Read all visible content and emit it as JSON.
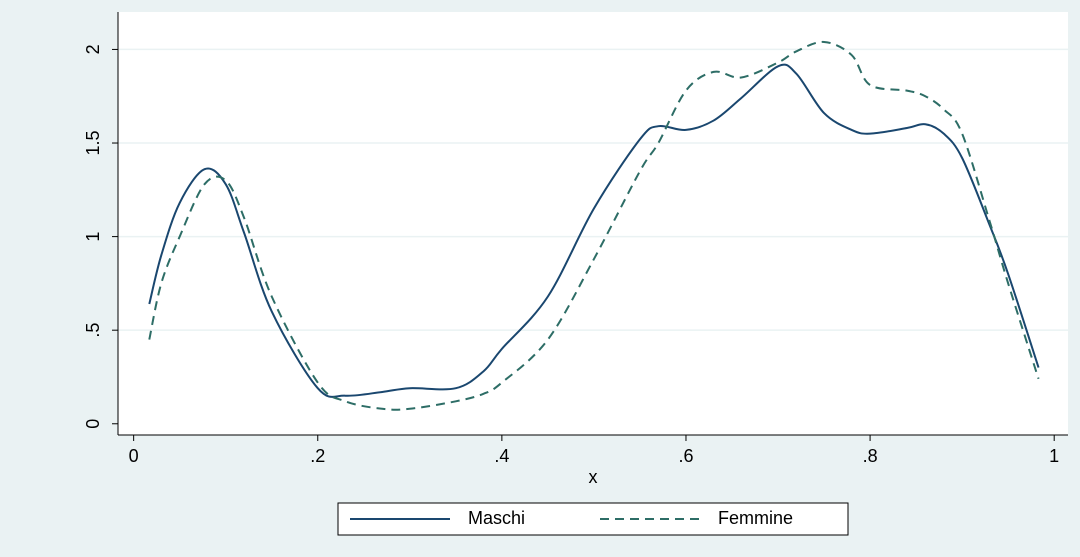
{
  "chart_data": {
    "type": "line",
    "x": [
      0.017,
      0.03,
      0.05,
      0.077,
      0.1,
      0.12,
      0.15,
      0.2,
      0.23,
      0.27,
      0.3,
      0.35,
      0.38,
      0.4,
      0.45,
      0.5,
      0.55,
      0.57,
      0.6,
      0.63,
      0.66,
      0.7,
      0.72,
      0.75,
      0.78,
      0.8,
      0.84,
      0.86,
      0.88,
      0.9,
      0.93,
      0.95,
      0.983
    ],
    "series": [
      {
        "name": "Maschi",
        "color": "#1a476f",
        "dash": false,
        "values": [
          0.64,
          0.9,
          1.18,
          1.36,
          1.28,
          1.02,
          0.6,
          0.19,
          0.15,
          0.17,
          0.19,
          0.19,
          0.28,
          0.4,
          0.68,
          1.15,
          1.52,
          1.59,
          1.57,
          1.62,
          1.74,
          1.91,
          1.87,
          1.66,
          1.57,
          1.55,
          1.58,
          1.6,
          1.55,
          1.42,
          1.06,
          0.8,
          0.3
        ]
      },
      {
        "name": "Femmine",
        "color": "#2d6d66",
        "dash": true,
        "values": [
          0.45,
          0.75,
          1.0,
          1.28,
          1.3,
          1.1,
          0.68,
          0.22,
          0.12,
          0.08,
          0.08,
          0.12,
          0.16,
          0.22,
          0.45,
          0.88,
          1.35,
          1.5,
          1.78,
          1.88,
          1.85,
          1.93,
          1.99,
          2.04,
          1.97,
          1.81,
          1.78,
          1.75,
          1.68,
          1.55,
          1.08,
          0.75,
          0.24
        ]
      }
    ],
    "x_label": "x",
    "xlim": [
      -0.017,
      1.015
    ],
    "ylim": [
      -0.06,
      2.2
    ],
    "xticks": [
      0,
      {
        "value": 0.2,
        "label": ".2"
      },
      {
        "value": 0.4,
        "label": ".4"
      },
      {
        "value": 0.6,
        "label": ".6"
      },
      {
        "value": 0.8,
        "label": ".8"
      },
      1
    ],
    "yticks": [
      0,
      {
        "value": 0.5,
        "label": ".5"
      },
      1,
      1.5,
      2
    ],
    "grid": true
  }
}
